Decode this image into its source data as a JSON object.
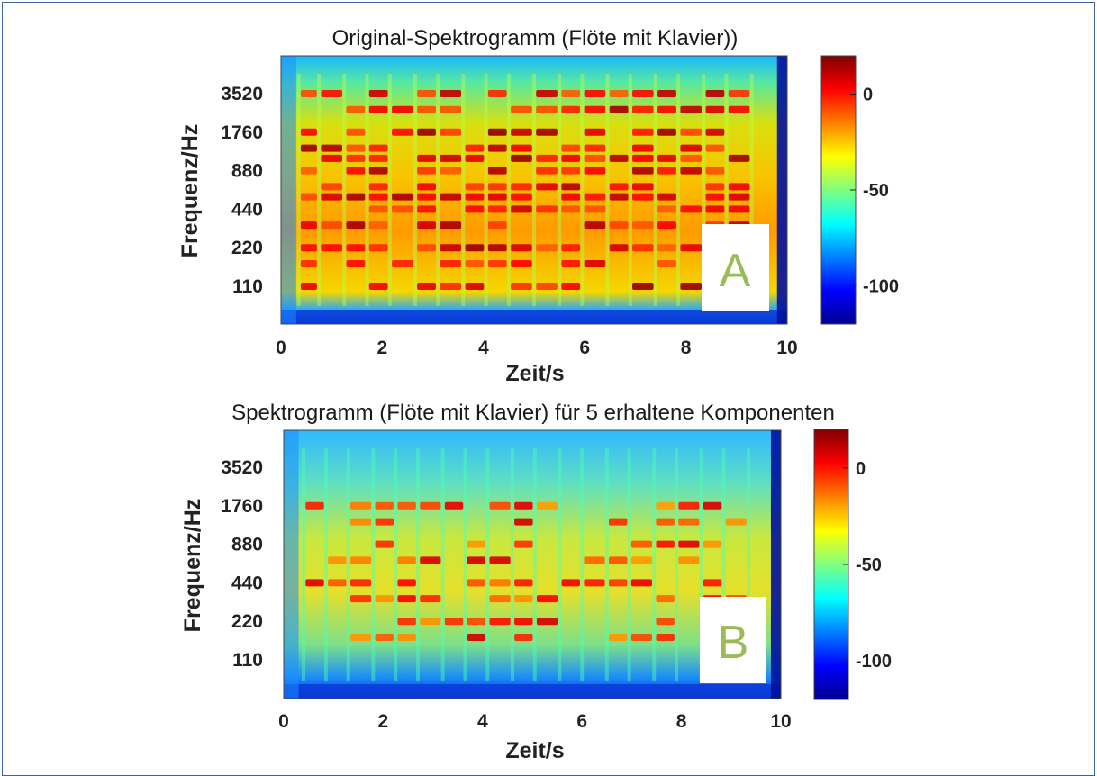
{
  "colors": {
    "badge_text": "#9bbb59",
    "badge_bg": "#ffffff",
    "frame": "#3d6596",
    "background_low": "#00008f"
  },
  "colormap": "jet",
  "chart_data": [
    {
      "type": "heatmap",
      "title": "Original-Spektrogramm (Flöte mit Klavier))",
      "xlabel": "Zeit/s",
      "ylabel": "Frequenz/Hz",
      "xlim": [
        0,
        10
      ],
      "x_ticks": [
        "0",
        "2",
        "4",
        "6",
        "8",
        "10"
      ],
      "y_ticks": [
        "110",
        "220",
        "440",
        "880",
        "1760",
        "3520"
      ],
      "y_scale": "log2",
      "colorbar_ticks": [
        "0",
        "-50",
        "-100"
      ],
      "colorbar_range": [
        -120,
        20
      ],
      "badge": "A",
      "note_onsets_s": [
        0.35,
        0.75,
        1.25,
        1.7,
        2.15,
        2.65,
        3.1,
        3.6,
        4.05,
        4.5,
        5.0,
        5.5,
        5.95,
        6.45,
        6.9,
        7.4,
        7.85,
        8.35,
        8.8,
        9.3
      ],
      "harmonic_bands_hz": [
        110,
        165,
        220,
        330,
        440,
        550,
        660,
        880,
        1100,
        1320,
        1760,
        2640,
        3520
      ]
    },
    {
      "type": "heatmap",
      "title": "Spektrogramm (Flöte mit Klavier) für 5 erhaltene Komponenten",
      "xlabel": "Zeit/s",
      "ylabel": "Frequenz/Hz",
      "xlim": [
        0,
        10
      ],
      "x_ticks": [
        "0",
        "2",
        "4",
        "6",
        "8",
        "10"
      ],
      "y_ticks": [
        "110",
        "220",
        "440",
        "880",
        "1760",
        "3520"
      ],
      "y_scale": "log2",
      "colorbar_ticks": [
        "0",
        "-50",
        "-100"
      ],
      "colorbar_range": [
        -120,
        20
      ],
      "badge": "B",
      "note_onsets_s": [
        0.4,
        0.85,
        1.3,
        1.8,
        2.25,
        2.7,
        3.2,
        3.65,
        4.1,
        4.6,
        5.05,
        5.55,
        6.0,
        6.5,
        6.95,
        7.45,
        7.9,
        8.4,
        8.85,
        9.35
      ],
      "harmonic_bands_hz": [
        165,
        220,
        330,
        440,
        660,
        880,
        1320,
        1760
      ]
    }
  ]
}
